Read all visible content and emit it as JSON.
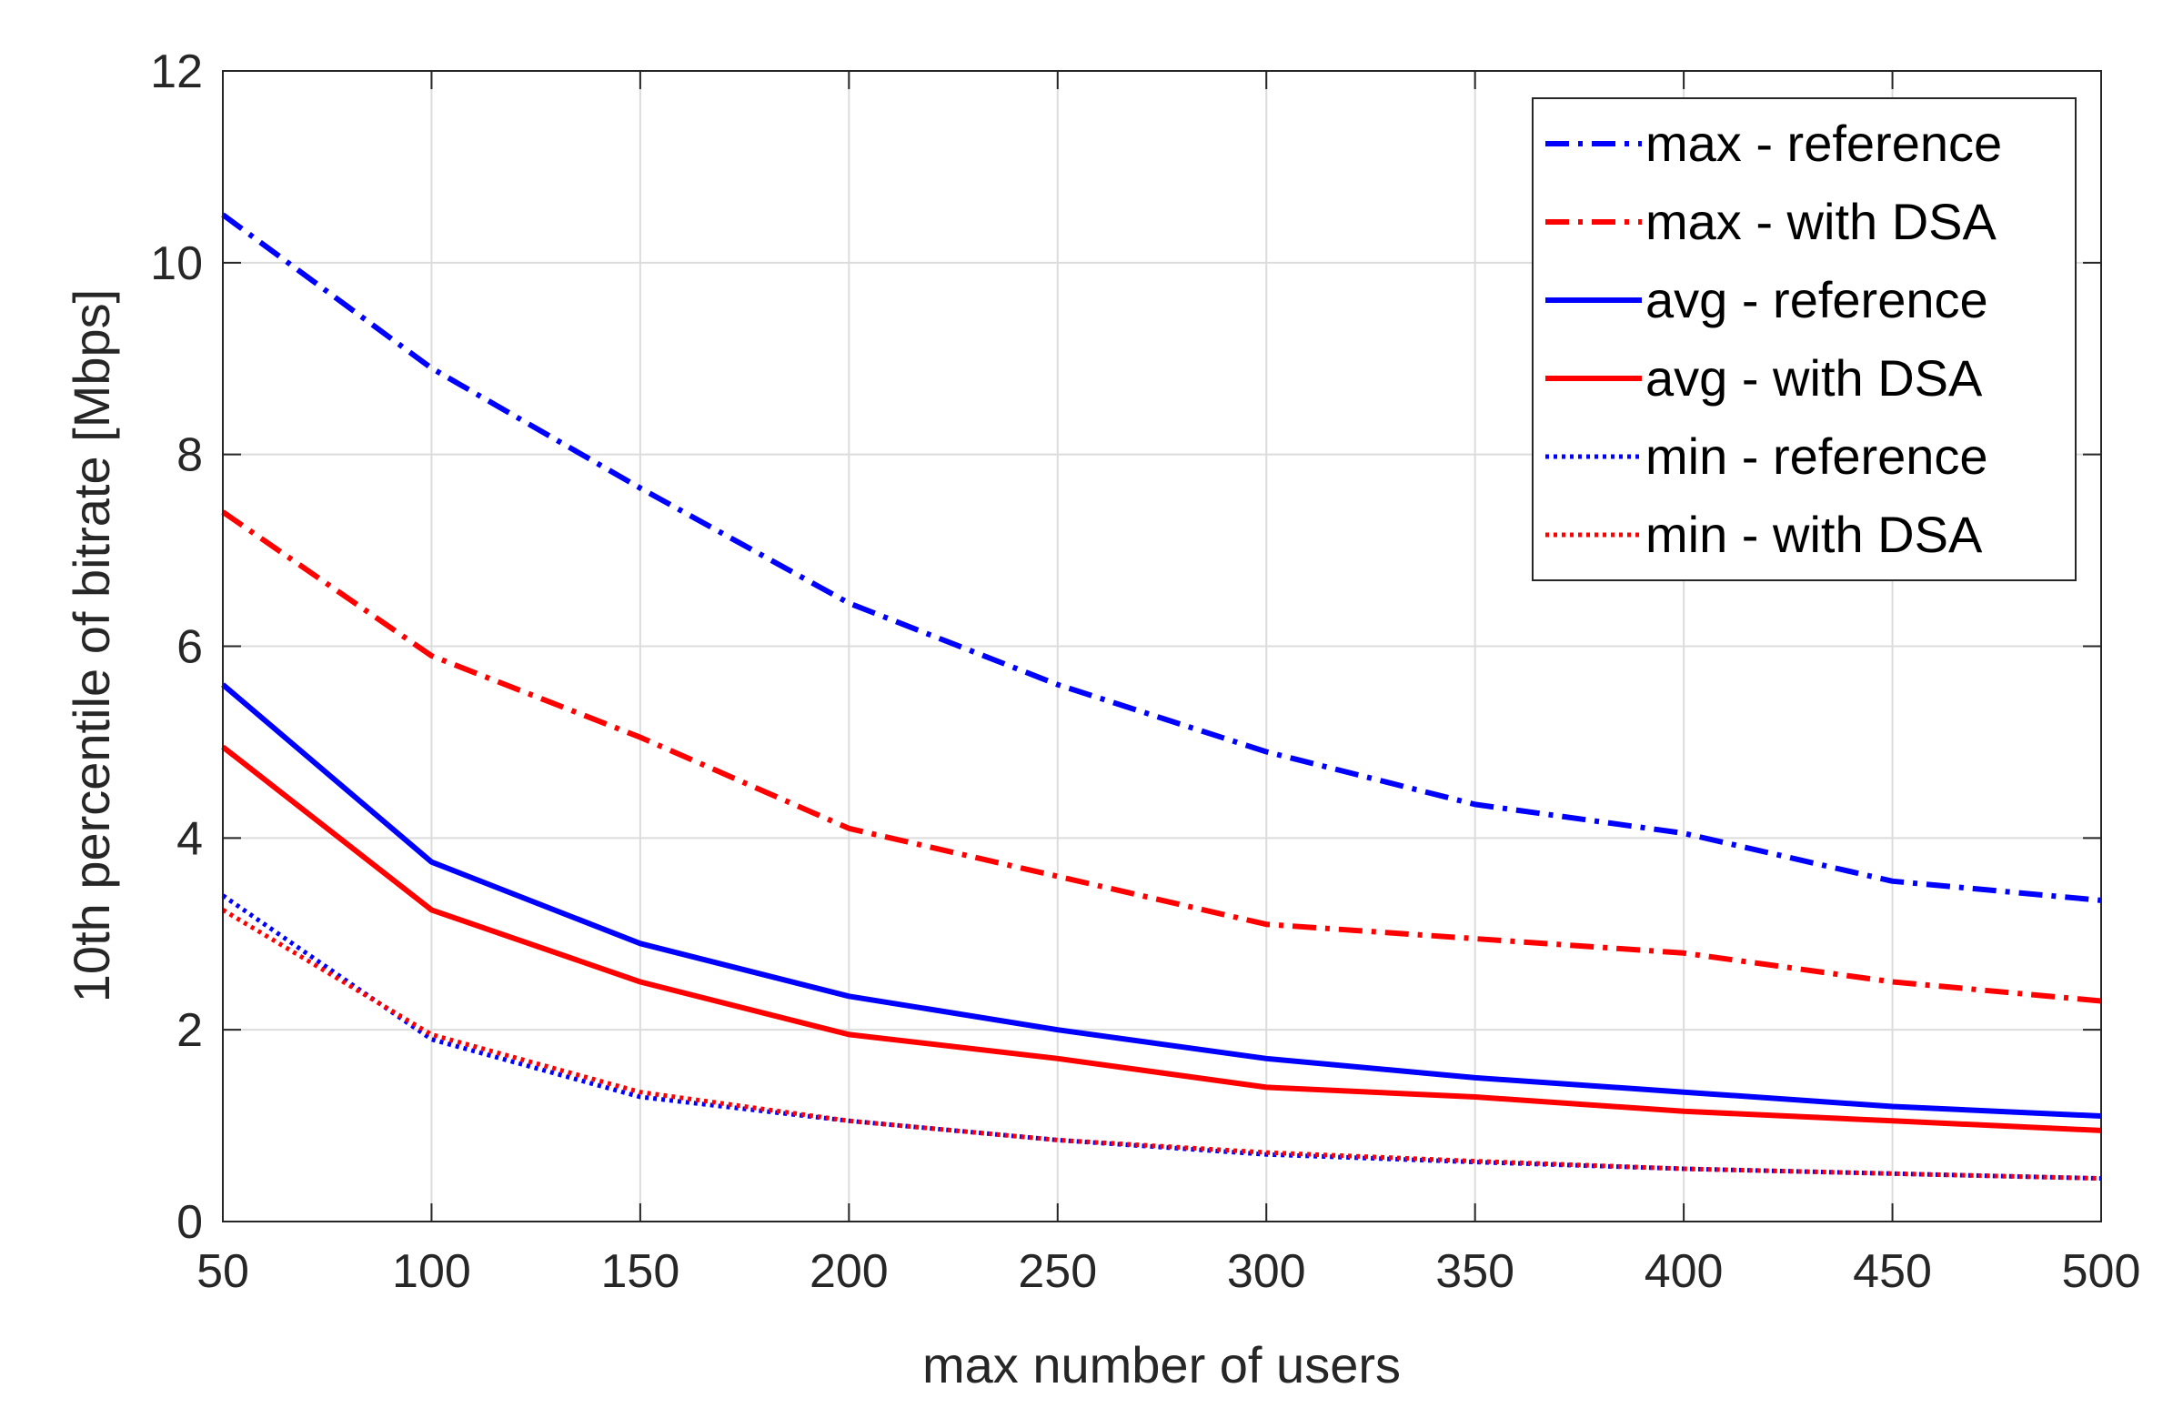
{
  "chart_data": {
    "type": "line",
    "title": "",
    "xlabel": "max number of users",
    "ylabel": "10th percentile of bitrate [Mbps]",
    "xlim": [
      50,
      500
    ],
    "ylim": [
      0,
      12
    ],
    "xticks": [
      50,
      100,
      150,
      200,
      250,
      300,
      350,
      400,
      450,
      500
    ],
    "yticks": [
      0,
      2,
      4,
      6,
      8,
      10,
      12
    ],
    "grid": true,
    "legend_position": "top-right",
    "x": [
      50,
      100,
      150,
      200,
      250,
      300,
      350,
      400,
      450,
      500
    ],
    "series": [
      {
        "name": "max - reference",
        "color": "#0000ff",
        "linestyle": "dashdot",
        "values": [
          10.5,
          8.9,
          7.65,
          6.45,
          5.6,
          4.9,
          4.35,
          4.05,
          3.55,
          3.35
        ]
      },
      {
        "name": "max - with DSA",
        "color": "#ff0000",
        "linestyle": "dashdot",
        "values": [
          7.4,
          5.9,
          5.05,
          4.1,
          3.6,
          3.1,
          2.95,
          2.8,
          2.5,
          2.3
        ]
      },
      {
        "name": "avg - reference",
        "color": "#0000ff",
        "linestyle": "solid",
        "values": [
          5.6,
          3.75,
          2.9,
          2.35,
          2.0,
          1.7,
          1.5,
          1.35,
          1.2,
          1.1
        ]
      },
      {
        "name": "avg - with DSA",
        "color": "#ff0000",
        "linestyle": "solid",
        "values": [
          4.95,
          3.25,
          2.5,
          1.95,
          1.7,
          1.4,
          1.3,
          1.15,
          1.05,
          0.95
        ]
      },
      {
        "name": "min - reference",
        "color": "#0000ff",
        "linestyle": "dotted",
        "values": [
          3.4,
          1.9,
          1.3,
          1.05,
          0.85,
          0.7,
          0.62,
          0.55,
          0.5,
          0.45
        ]
      },
      {
        "name": "min - with DSA",
        "color": "#ff0000",
        "linestyle": "dotted",
        "values": [
          3.25,
          1.95,
          1.35,
          1.05,
          0.85,
          0.72,
          0.63,
          0.55,
          0.5,
          0.45
        ]
      }
    ]
  }
}
